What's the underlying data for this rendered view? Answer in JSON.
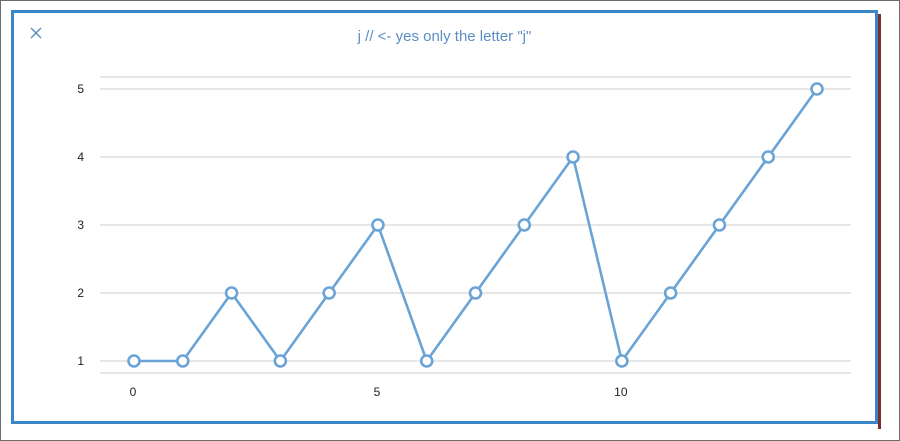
{
  "window": {
    "title": "j // <- yes only the letter \"j\"",
    "close_icon": "close-icon"
  },
  "colors": {
    "line": "#6aa3d5",
    "window_border": "#3a86c8",
    "grid": "#cfcfcf",
    "title": "#5b8ec4"
  },
  "chart_data": {
    "type": "line",
    "title": "j // <- yes only the letter \"j\"",
    "xlabel": "",
    "ylabel": "",
    "x": [
      0,
      1,
      2,
      3,
      4,
      5,
      6,
      7,
      8,
      9,
      10,
      11,
      12,
      13,
      14
    ],
    "series": [
      {
        "values": [
          1,
          1,
          2,
          1,
          2,
          3,
          1,
          2,
          3,
          4,
          1,
          2,
          3,
          4,
          5
        ]
      }
    ],
    "xticks": [
      0,
      5,
      10
    ],
    "yticks": [
      1,
      2,
      3,
      4,
      5
    ],
    "xlim": [
      0,
      14
    ],
    "ylim": [
      1,
      5
    ],
    "grid": true,
    "legend": "none",
    "markers": "hollow-circles"
  }
}
